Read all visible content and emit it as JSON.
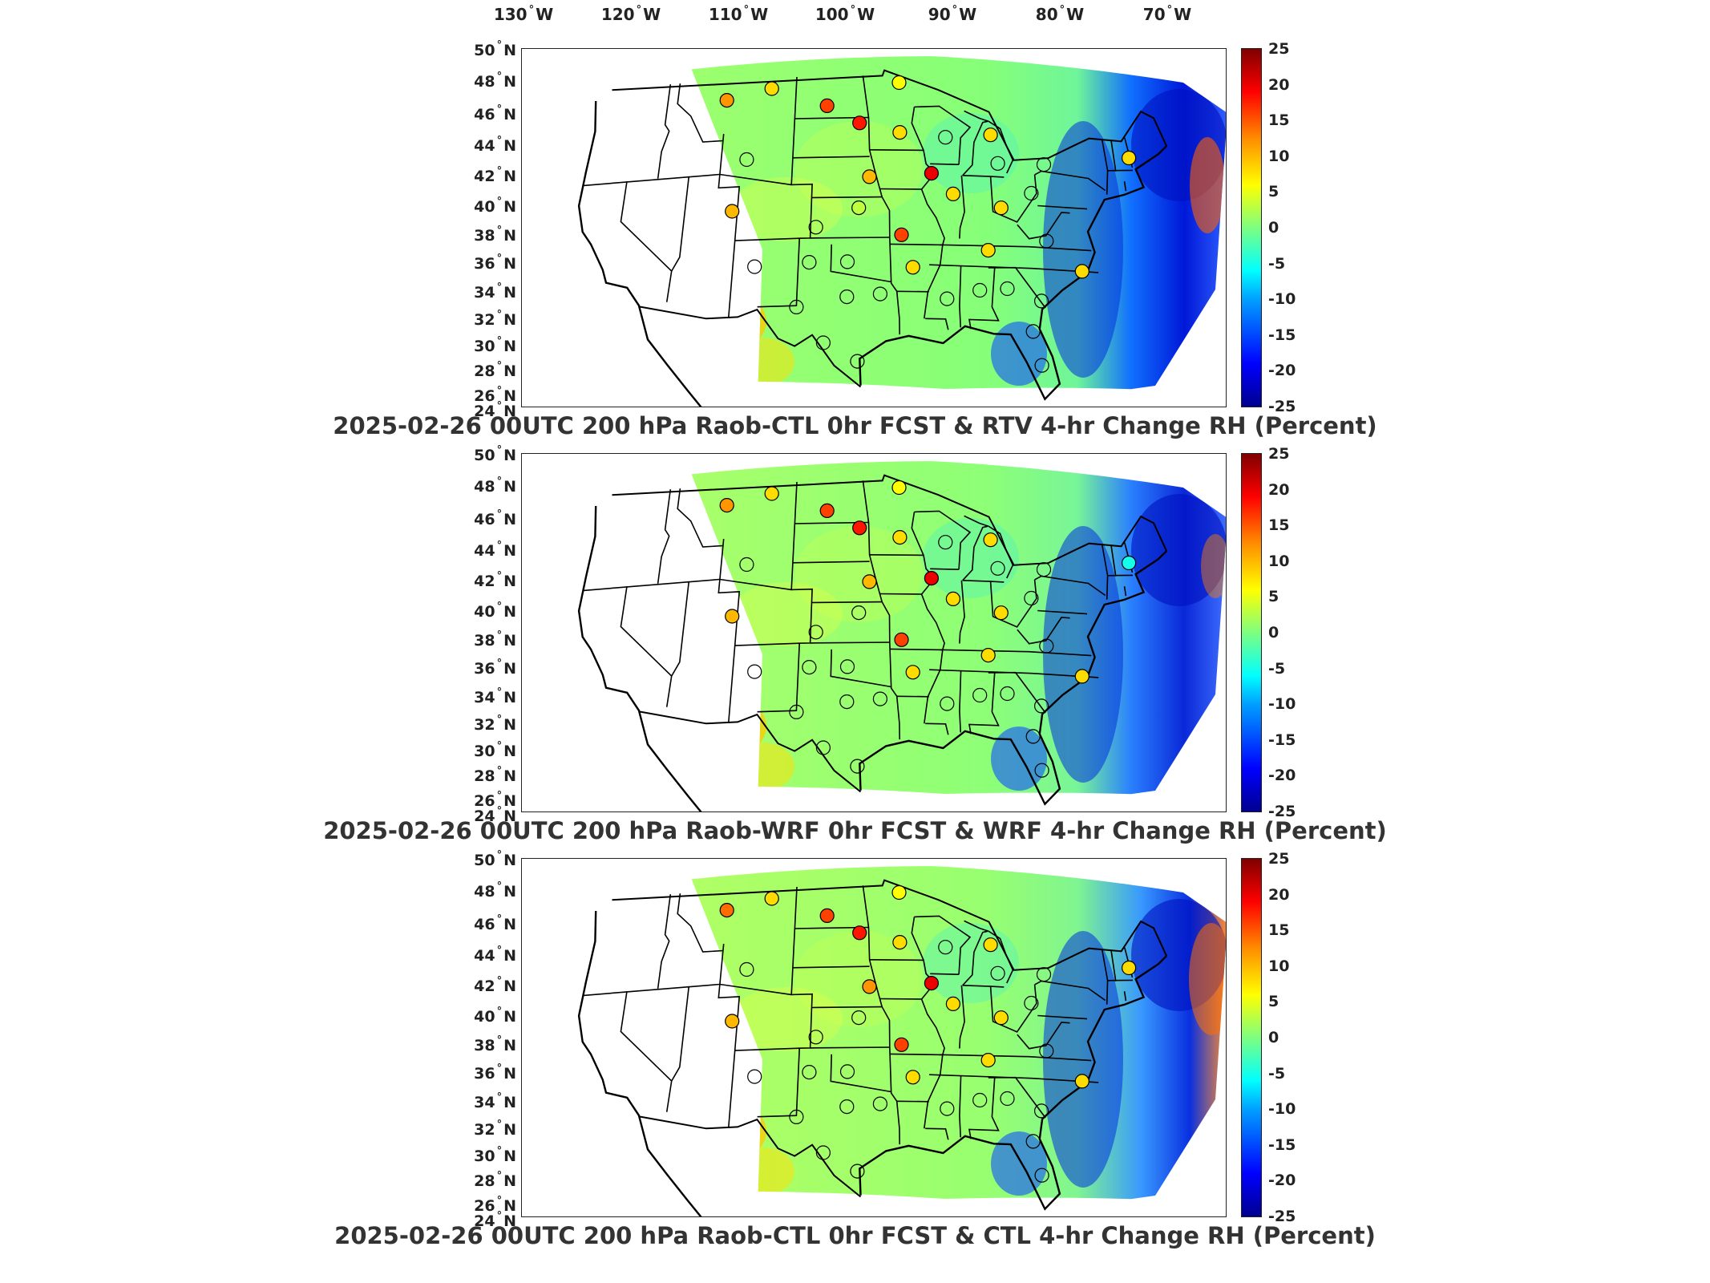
{
  "lon_labels": [
    {
      "value": "130",
      "hemi": "W"
    },
    {
      "value": "120",
      "hemi": "W"
    },
    {
      "value": "110",
      "hemi": "W"
    },
    {
      "value": "100",
      "hemi": "W"
    },
    {
      "value": "90",
      "hemi": "W"
    },
    {
      "value": "80",
      "hemi": "W"
    },
    {
      "value": "70",
      "hemi": "W"
    }
  ],
  "degree_symbol": "°",
  "lat_labels": [
    {
      "value": "50",
      "hemi": "N"
    },
    {
      "value": "48",
      "hemi": "N"
    },
    {
      "value": "46",
      "hemi": "N"
    },
    {
      "value": "44",
      "hemi": "N"
    },
    {
      "value": "42",
      "hemi": "N"
    },
    {
      "value": "40",
      "hemi": "N"
    },
    {
      "value": "38",
      "hemi": "N"
    },
    {
      "value": "36",
      "hemi": "N"
    },
    {
      "value": "34",
      "hemi": "N"
    },
    {
      "value": "32",
      "hemi": "N"
    },
    {
      "value": "30",
      "hemi": "N"
    },
    {
      "value": "28",
      "hemi": "N"
    },
    {
      "value": "26",
      "hemi": "N"
    },
    {
      "value": "24",
      "hemi": "N"
    }
  ],
  "colorbar": {
    "ticks": [
      "25",
      "20",
      "15",
      "10",
      "5",
      "0",
      "-5",
      "-10",
      "-15",
      "-20",
      "-25"
    ],
    "min": -25,
    "max": 25,
    "colors": [
      "#00008f",
      "#0000ff",
      "#00a0ff",
      "#00ffff",
      "#7dff80",
      "#ffff00",
      "#ff8c00",
      "#ff0000",
      "#800000"
    ]
  },
  "panels": [
    {
      "title": "2025-02-26 00UTC 200 hPa Raob-CTL 0hr FCST & RTV 4-hr Change RH (Percent)"
    },
    {
      "title": "2025-02-26 00UTC 200 hPa Raob-WRF 0hr FCST & WRF 4-hr Change RH (Percent)"
    },
    {
      "title": "2025-02-26 00UTC 200 hPa Raob-CTL 0hr FCST & CTL 4-hr Change RH (Percent)"
    }
  ],
  "stations": [
    {
      "lon": -111.0,
      "lat": 47.5,
      "values": [
        12,
        12,
        14
      ]
    },
    {
      "lon": -106.5,
      "lat": 48.2,
      "values": [
        8,
        8,
        8
      ]
    },
    {
      "lon": -100.8,
      "lat": 46.8,
      "values": [
        16,
        16,
        16
      ]
    },
    {
      "lon": -97.5,
      "lat": 45.5,
      "values": [
        18,
        18,
        18
      ]
    },
    {
      "lon": -93.5,
      "lat": 48.5,
      "values": [
        6,
        6,
        6
      ]
    },
    {
      "lon": -93.5,
      "lat": 44.8,
      "values": [
        8,
        8,
        8
      ]
    },
    {
      "lon": -89.0,
      "lat": 44.5,
      "values": [
        0,
        0,
        0
      ]
    },
    {
      "lon": -84.5,
      "lat": 44.8,
      "values": [
        8,
        8,
        8
      ]
    },
    {
      "lon": -84.0,
      "lat": 42.7,
      "values": [
        1,
        1,
        1
      ]
    },
    {
      "lon": -79.5,
      "lat": 42.8,
      "values": [
        2,
        2,
        2
      ]
    },
    {
      "lon": -71.0,
      "lat": 43.8,
      "values": [
        8,
        -5,
        8
      ]
    },
    {
      "lon": -108.5,
      "lat": 43.0,
      "values": [
        1,
        1,
        1
      ]
    },
    {
      "lon": -96.5,
      "lat": 41.5,
      "values": [
        10,
        10,
        12
      ]
    },
    {
      "lon": -90.5,
      "lat": 41.8,
      "values": [
        20,
        20,
        20
      ]
    },
    {
      "lon": -88.5,
      "lat": 40.3,
      "values": [
        8,
        8,
        8
      ]
    },
    {
      "lon": -84.0,
      "lat": 39.4,
      "values": [
        8,
        8,
        8
      ]
    },
    {
      "lon": -81.0,
      "lat": 40.6,
      "values": [
        1,
        1,
        -1
      ]
    },
    {
      "lon": -109.5,
      "lat": 39.2,
      "values": [
        10,
        10,
        10
      ]
    },
    {
      "lon": -101.5,
      "lat": 37.8,
      "values": [
        -1,
        -1,
        -1
      ]
    },
    {
      "lon": -97.5,
      "lat": 39.2,
      "values": [
        3,
        2,
        2
      ]
    },
    {
      "lon": -93.5,
      "lat": 37.2,
      "values": [
        16,
        16,
        16
      ]
    },
    {
      "lon": -85.5,
      "lat": 36.2,
      "values": [
        8,
        8,
        8
      ]
    },
    {
      "lon": -80.0,
      "lat": 37.1,
      "values": [
        -2,
        -2,
        -2
      ]
    },
    {
      "lon": -77.0,
      "lat": 35.0,
      "values": [
        8,
        8,
        8
      ]
    },
    {
      "lon": -107.0,
      "lat": 35.0,
      "values": [
        1,
        1,
        1
      ]
    },
    {
      "lon": -102.0,
      "lat": 35.2,
      "values": [
        1,
        1,
        1
      ]
    },
    {
      "lon": -98.5,
      "lat": 35.2,
      "values": [
        1,
        1,
        1
      ]
    },
    {
      "lon": -95.5,
      "lat": 32.8,
      "values": [
        1,
        1,
        1
      ]
    },
    {
      "lon": -92.5,
      "lat": 34.8,
      "values": [
        8,
        8,
        8
      ]
    },
    {
      "lon": -89.5,
      "lat": 32.5,
      "values": [
        1,
        1,
        1
      ]
    },
    {
      "lon": -86.5,
      "lat": 33.2,
      "values": [
        1,
        1,
        1
      ]
    },
    {
      "lon": -84.0,
      "lat": 33.4,
      "values": [
        2,
        2,
        -2
      ]
    },
    {
      "lon": -81.0,
      "lat": 32.6,
      "values": [
        -2,
        -2,
        -2
      ]
    },
    {
      "lon": -103.0,
      "lat": 31.9,
      "values": [
        1,
        1,
        1
      ]
    },
    {
      "lon": -98.5,
      "lat": 32.6,
      "values": [
        1,
        1,
        1
      ]
    },
    {
      "lon": -100.5,
      "lat": 29.2,
      "values": [
        2,
        2,
        2
      ]
    },
    {
      "lon": -97.5,
      "lat": 27.8,
      "values": [
        2,
        2,
        2
      ]
    },
    {
      "lon": -82.0,
      "lat": 30.3,
      "values": [
        1,
        1,
        1
      ]
    },
    {
      "lon": -81.5,
      "lat": 27.8,
      "values": [
        1,
        1,
        1
      ]
    }
  ]
}
